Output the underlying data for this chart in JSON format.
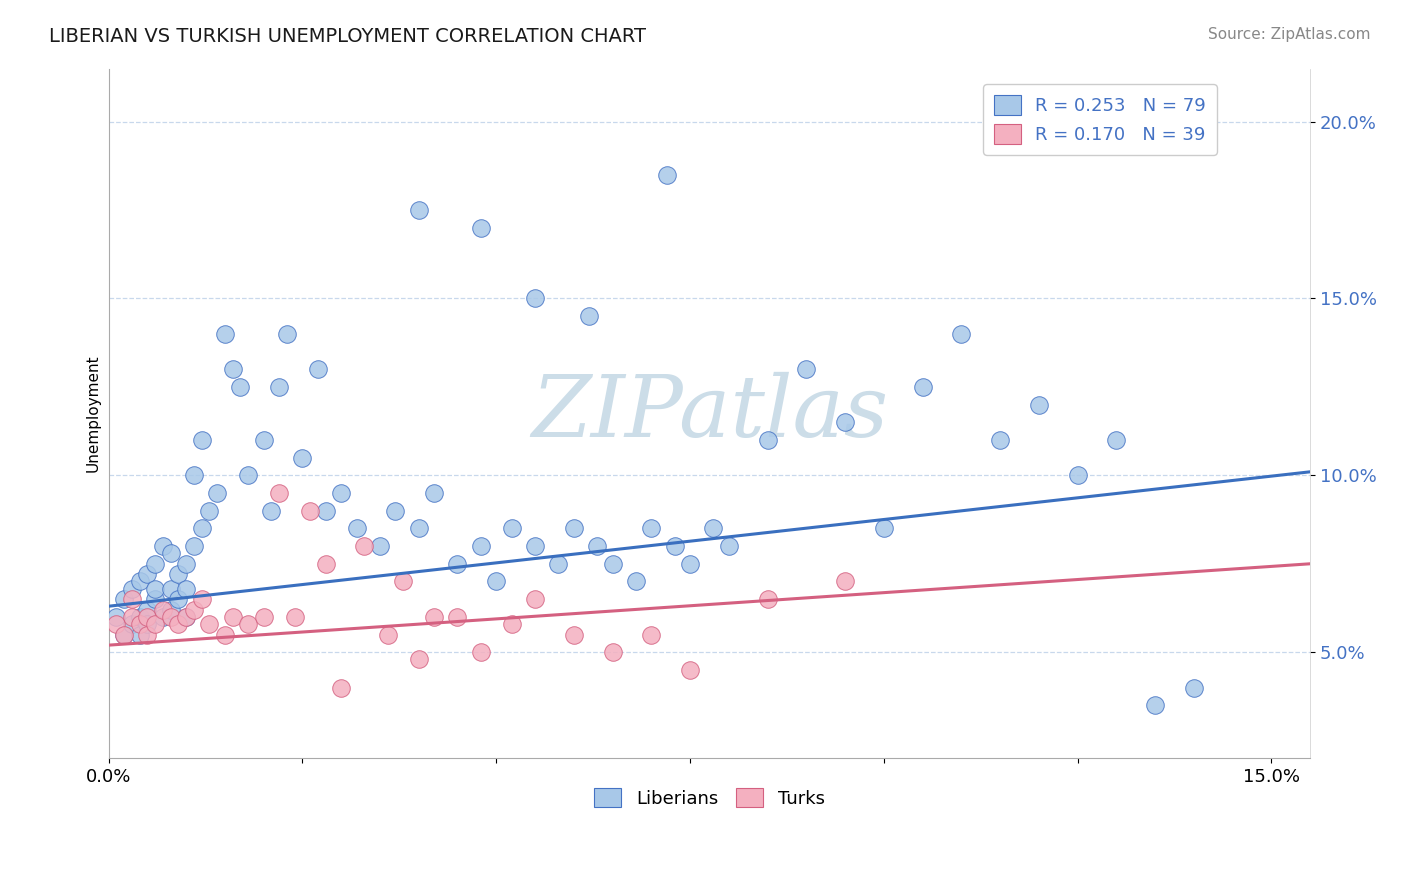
{
  "title": "LIBERIAN VS TURKISH UNEMPLOYMENT CORRELATION CHART",
  "source_text": "Source: ZipAtlas.com",
  "ylabel": "Unemployment",
  "xlim": [
    0.0,
    0.155
  ],
  "ylim": [
    0.02,
    0.215
  ],
  "yticks": [
    0.05,
    0.1,
    0.15,
    0.2
  ],
  "ytick_labels": [
    "5.0%",
    "10.0%",
    "15.0%",
    "20.0%"
  ],
  "xtick_vals": [
    0.0,
    0.025,
    0.05,
    0.075,
    0.1,
    0.125,
    0.15
  ],
  "xtick_labels": [
    "0.0%",
    "",
    "",
    "",
    "",
    "",
    "15.0%"
  ],
  "legend_line1": "R = 0.253   N = 79",
  "legend_line2": "R = 0.170   N = 39",
  "blue_face": "#a8c8e8",
  "blue_edge": "#4472c4",
  "pink_face": "#f4b0c0",
  "pink_edge": "#d46080",
  "trend_blue": "#3a6fbf",
  "trend_pink": "#d46080",
  "grid_color": "#c8d8ec",
  "watermark_color": "#ccdde8",
  "legend_text_color": "#4472c4",
  "title_color": "#1a1a1a",
  "axis_label_color": "#4472c4",
  "liberian_x": [
    0.001,
    0.002,
    0.002,
    0.003,
    0.003,
    0.004,
    0.004,
    0.004,
    0.005,
    0.005,
    0.005,
    0.006,
    0.006,
    0.006,
    0.007,
    0.007,
    0.008,
    0.008,
    0.008,
    0.009,
    0.009,
    0.01,
    0.01,
    0.01,
    0.011,
    0.011,
    0.012,
    0.012,
    0.013,
    0.014,
    0.015,
    0.016,
    0.017,
    0.018,
    0.02,
    0.021,
    0.022,
    0.023,
    0.025,
    0.027,
    0.028,
    0.03,
    0.032,
    0.035,
    0.037,
    0.04,
    0.042,
    0.045,
    0.048,
    0.05,
    0.052,
    0.055,
    0.058,
    0.06,
    0.063,
    0.065,
    0.068,
    0.07,
    0.073,
    0.075,
    0.078,
    0.08,
    0.085,
    0.09,
    0.095,
    0.1,
    0.105,
    0.11,
    0.115,
    0.12,
    0.125,
    0.13,
    0.135,
    0.14,
    0.04,
    0.048,
    0.055,
    0.062,
    0.072
  ],
  "liberian_y": [
    0.06,
    0.055,
    0.065,
    0.058,
    0.068,
    0.06,
    0.055,
    0.07,
    0.062,
    0.058,
    0.072,
    0.065,
    0.068,
    0.075,
    0.06,
    0.08,
    0.062,
    0.068,
    0.078,
    0.065,
    0.072,
    0.06,
    0.068,
    0.075,
    0.1,
    0.08,
    0.11,
    0.085,
    0.09,
    0.095,
    0.14,
    0.13,
    0.125,
    0.1,
    0.11,
    0.09,
    0.125,
    0.14,
    0.105,
    0.13,
    0.09,
    0.095,
    0.085,
    0.08,
    0.09,
    0.085,
    0.095,
    0.075,
    0.08,
    0.07,
    0.085,
    0.08,
    0.075,
    0.085,
    0.08,
    0.075,
    0.07,
    0.085,
    0.08,
    0.075,
    0.085,
    0.08,
    0.11,
    0.13,
    0.115,
    0.085,
    0.125,
    0.14,
    0.11,
    0.12,
    0.1,
    0.11,
    0.035,
    0.04,
    0.175,
    0.17,
    0.15,
    0.145,
    0.185
  ],
  "turk_x": [
    0.001,
    0.002,
    0.003,
    0.003,
    0.004,
    0.005,
    0.005,
    0.006,
    0.007,
    0.008,
    0.009,
    0.01,
    0.011,
    0.012,
    0.013,
    0.015,
    0.016,
    0.018,
    0.02,
    0.022,
    0.024,
    0.026,
    0.028,
    0.03,
    0.033,
    0.036,
    0.038,
    0.04,
    0.042,
    0.045,
    0.048,
    0.052,
    0.055,
    0.06,
    0.065,
    0.07,
    0.075,
    0.085,
    0.095
  ],
  "turk_y": [
    0.058,
    0.055,
    0.06,
    0.065,
    0.058,
    0.055,
    0.06,
    0.058,
    0.062,
    0.06,
    0.058,
    0.06,
    0.062,
    0.065,
    0.058,
    0.055,
    0.06,
    0.058,
    0.06,
    0.095,
    0.06,
    0.09,
    0.075,
    0.04,
    0.08,
    0.055,
    0.07,
    0.048,
    0.06,
    0.06,
    0.05,
    0.058,
    0.065,
    0.055,
    0.05,
    0.055,
    0.045,
    0.065,
    0.07
  ]
}
